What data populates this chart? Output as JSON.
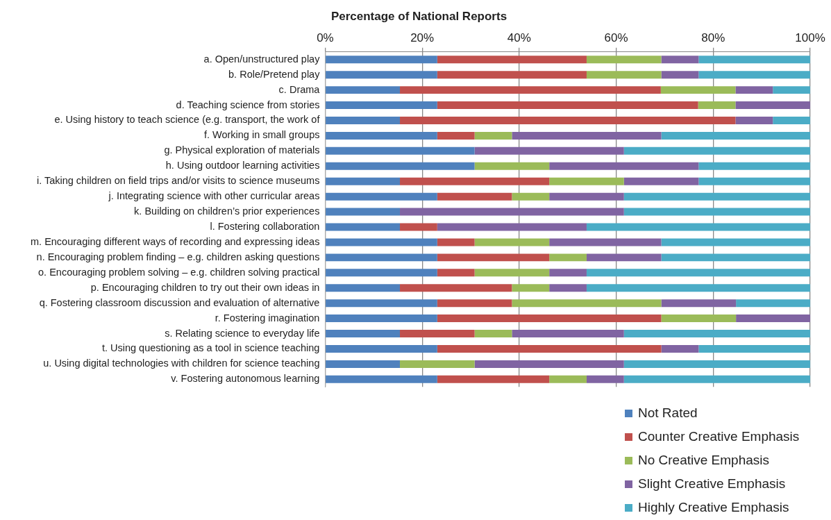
{
  "chart_data": {
    "type": "bar",
    "orientation": "horizontal",
    "stacked": true,
    "title": "Percentage of National Reports",
    "categories": [
      "a. Open/unstructured play",
      "b. Role/Pretend play",
      "c. Drama",
      "d. Teaching science from stories",
      "e. Using history to teach science (e.g. transport, the work of",
      "f. Working in small groups",
      "g. Physical exploration of materials",
      "h. Using outdoor learning activities",
      "i. Taking children on field trips and/or visits to science museums",
      "j. Integrating science with other curricular areas",
      "k. Building on children’s prior experiences",
      "l. Fostering collaboration",
      "m. Encouraging different ways of recording and expressing ideas",
      "n. Encouraging problem finding – e.g. children asking questions",
      "o. Encouraging problem solving – e.g. children solving practical",
      "p. Encouraging children to try out their own ideas in",
      "q. Fostering classroom discussion and evaluation of alternative",
      "r. Fostering imagination",
      "s. Relating science to everyday life",
      "t. Using questioning as a tool in science teaching",
      "u. Using digital technologies with children for science teaching",
      "v. Fostering autonomous learning"
    ],
    "series": [
      {
        "name": "Not Rated",
        "color": "#4f81bd",
        "values": [
          23.1,
          23.1,
          15.4,
          23.1,
          15.4,
          23.1,
          30.8,
          30.8,
          15.4,
          23.1,
          15.4,
          15.4,
          23.1,
          23.1,
          23.1,
          15.4,
          23.1,
          23.1,
          15.4,
          23.1,
          15.4,
          23.1
        ]
      },
      {
        "name": "Counter Creative Emphasis",
        "color": "#c0504d",
        "values": [
          30.8,
          30.8,
          53.8,
          53.8,
          69.2,
          7.7,
          0,
          0,
          30.8,
          15.4,
          0,
          7.7,
          7.7,
          23.1,
          7.7,
          23.1,
          15.4,
          46.2,
          15.4,
          46.2,
          0,
          23.1
        ]
      },
      {
        "name": "No Creative Emphasis",
        "color": "#9bbb59",
        "values": [
          15.4,
          15.4,
          15.4,
          7.7,
          0,
          7.7,
          0,
          15.4,
          15.4,
          7.7,
          0,
          0,
          15.4,
          7.7,
          15.4,
          7.7,
          30.8,
          15.4,
          7.7,
          0,
          15.4,
          7.7
        ]
      },
      {
        "name": "Slight Creative Emphasis",
        "color": "#8064a2",
        "values": [
          7.7,
          7.7,
          7.7,
          15.4,
          7.7,
          30.8,
          30.8,
          30.8,
          15.4,
          15.4,
          46.2,
          30.8,
          23.1,
          15.4,
          7.7,
          7.7,
          15.4,
          15.3,
          23.1,
          7.7,
          30.8,
          7.7
        ]
      },
      {
        "name": "Highly Creative Emphasis",
        "color": "#4bacc6",
        "values": [
          23.0,
          23.0,
          7.7,
          0,
          7.7,
          30.7,
          38.4,
          23.0,
          23.0,
          38.4,
          38.4,
          46.1,
          30.7,
          30.7,
          46.1,
          46.1,
          15.3,
          0,
          38.4,
          23.0,
          38.4,
          38.4
        ]
      }
    ],
    "xlim": [
      0,
      100
    ],
    "xticks": [
      {
        "value": 0,
        "label": "0%"
      },
      {
        "value": 20,
        "label": "20%"
      },
      {
        "value": 40,
        "label": "40%"
      },
      {
        "value": 60,
        "label": "60%"
      },
      {
        "value": 80,
        "label": "80%"
      },
      {
        "value": 100,
        "label": "100%"
      }
    ],
    "grid": "x",
    "legend": "bottom right"
  }
}
